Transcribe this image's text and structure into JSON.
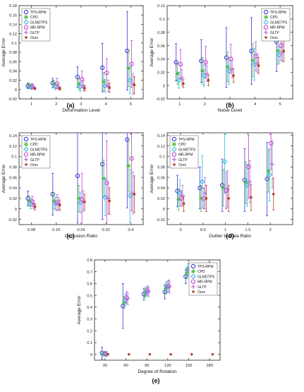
{
  "series_styles": [
    {
      "name": "TPS-RPM",
      "color": "#3a3ad6",
      "marker": "circle",
      "open": true
    },
    {
      "name": "CPD",
      "color": "#4cc23a",
      "marker": "star",
      "open": false
    },
    {
      "name": "GLMDTPS",
      "color": "#2fb8d8",
      "marker": "diamond",
      "open": true
    },
    {
      "name": "MR-RPM",
      "color": "#c23fd6",
      "marker": "circle",
      "open": true
    },
    {
      "name": "GLTP",
      "color": "#b46bd8",
      "marker": "plus",
      "open": false
    },
    {
      "name": "Ours",
      "color": "#b4442a",
      "marker": "dot",
      "open": false
    }
  ],
  "chart_data": [
    {
      "type": "scatter",
      "panel_label": "(a)",
      "xlabel": "Deformation Level",
      "ylabel": "Average Error",
      "xlim": [
        0.5,
        5.5
      ],
      "ylim": [
        -0.02,
        0.18
      ],
      "xticks": [
        1,
        2,
        3,
        4,
        5
      ],
      "xtick_labels": [
        "1",
        "2",
        "3",
        "4",
        "5"
      ],
      "yticks": [
        -0.02,
        0,
        0.02,
        0.04,
        0.06,
        0.08,
        0.1,
        0.12,
        0.14,
        0.16,
        0.18
      ],
      "ytick_labels": [
        "-0.02",
        "0",
        "0.02",
        "0.04",
        "0.06",
        "0.08",
        "0.1",
        "0.12",
        "0.14",
        "0.16",
        "0.18"
      ],
      "legend": "top-left",
      "grid": false,
      "series": [
        {
          "name": "TPS-RPM",
          "x": [
            1,
            2,
            3,
            4,
            5
          ],
          "y": [
            0.008,
            0.014,
            0.027,
            0.047,
            0.083
          ],
          "err": [
            0.006,
            0.01,
            0.022,
            0.052,
            0.084
          ]
        },
        {
          "name": "CPD",
          "x": [
            1,
            2,
            3,
            4,
            5
          ],
          "y": [
            0.009,
            0.012,
            0.012,
            0.017,
            0.046
          ],
          "err": [
            0.005,
            0.008,
            0.012,
            0.02,
            0.04
          ]
        },
        {
          "name": "GLMDTPS",
          "x": [
            1,
            2,
            3,
            4,
            5
          ],
          "y": [
            0.005,
            0.006,
            0.006,
            0.008,
            0.02
          ],
          "err": [
            0.004,
            0.006,
            0.01,
            0.014,
            0.028
          ]
        },
        {
          "name": "MR-RPM",
          "x": [
            1,
            2,
            3,
            4,
            5
          ],
          "y": [
            0.007,
            0.013,
            0.022,
            0.036,
            0.055
          ],
          "err": [
            0.006,
            0.011,
            0.018,
            0.03,
            0.05
          ]
        },
        {
          "name": "GLTP",
          "x": [
            1,
            2,
            3,
            4,
            5
          ],
          "y": [
            0.005,
            0.006,
            0.008,
            0.008,
            0.012
          ],
          "err": [
            0.003,
            0.005,
            0.01,
            0.012,
            0.022
          ]
        },
        {
          "name": "Ours",
          "x": [
            1,
            2,
            3,
            4,
            5
          ],
          "y": [
            0.002,
            0.002,
            0.003,
            0.004,
            0.01
          ],
          "err": [
            0.002,
            0.003,
            0.006,
            0.01,
            0.018
          ]
        }
      ]
    },
    {
      "type": "scatter",
      "panel_label": "(b)",
      "xlabel": "Noise Level",
      "ylabel": "Average Error",
      "xlim": [
        0.5,
        5.5
      ],
      "ylim": [
        -0.02,
        0.12
      ],
      "xticks": [
        1,
        2,
        3,
        4,
        5
      ],
      "xtick_labels": [
        "1",
        "2",
        "3",
        "4",
        "5"
      ],
      "yticks": [
        -0.02,
        0,
        0.02,
        0.04,
        0.06,
        0.08,
        0.1,
        0.12
      ],
      "ytick_labels": [
        "-0.02",
        "0",
        "0.02",
        "0.04",
        "0.06",
        "0.08",
        "0.1",
        "0.12"
      ],
      "legend": "top-right",
      "grid": false,
      "series": [
        {
          "name": "TPS-RPM",
          "x": [
            1,
            2,
            3,
            4,
            5
          ],
          "y": [
            0.035,
            0.037,
            0.042,
            0.052,
            0.066
          ],
          "err": [
            0.028,
            0.032,
            0.045,
            0.05,
            0.045
          ]
        },
        {
          "name": "CPD",
          "x": [
            1,
            2,
            3,
            4,
            5
          ],
          "y": [
            0.018,
            0.022,
            0.028,
            0.038,
            0.052
          ],
          "err": [
            0.016,
            0.02,
            0.022,
            0.025,
            0.02
          ]
        },
        {
          "name": "GLMDTPS",
          "x": [
            1,
            2,
            3,
            4,
            5
          ],
          "y": [
            0.008,
            0.015,
            0.022,
            0.032,
            0.046
          ],
          "err": [
            0.012,
            0.016,
            0.02,
            0.024,
            0.012
          ]
        },
        {
          "name": "MR-RPM",
          "x": [
            1,
            2,
            3,
            4,
            5
          ],
          "y": [
            0.032,
            0.035,
            0.04,
            0.044,
            0.06
          ],
          "err": [
            0.022,
            0.024,
            0.022,
            0.022,
            0.022
          ]
        },
        {
          "name": "GLTP",
          "x": [
            1,
            2,
            3,
            4,
            5
          ],
          "y": [
            0.012,
            0.018,
            0.025,
            0.034,
            0.05
          ],
          "err": [
            0.012,
            0.012,
            0.013,
            0.014,
            0.014
          ]
        },
        {
          "name": "Ours",
          "x": [
            1,
            2,
            3,
            4,
            5
          ],
          "y": [
            0.003,
            0.008,
            0.015,
            0.03,
            0.052
          ],
          "err": [
            0.006,
            0.008,
            0.01,
            0.012,
            0.016
          ]
        }
      ]
    },
    {
      "type": "scatter",
      "panel_label": "(c)",
      "xlabel": "Occlusion Ratio",
      "ylabel": "Average Error",
      "xlim": [
        0.04,
        0.44
      ],
      "ylim": [
        -0.03,
        0.145
      ],
      "xticks": [
        0.08,
        0.16,
        0.24,
        0.32,
        0.4
      ],
      "xtick_labels": [
        "0.08",
        "0.16",
        "0.24",
        "0.32",
        "0.4"
      ],
      "yticks": [
        -0.02,
        0,
        0.02,
        0.04,
        0.06,
        0.08,
        0.1,
        0.12,
        0.14
      ],
      "ytick_labels": [
        "-0.02",
        "0",
        "0.02",
        "0.04",
        "0.06",
        "0.08",
        "0.1",
        "0.12",
        "0.14"
      ],
      "legend": "top-left",
      "grid": false,
      "series": [
        {
          "name": "TPS-RPM",
          "x": [
            0.08,
            0.16,
            0.24,
            0.32,
            0.4
          ],
          "y": [
            0.02,
            0.028,
            0.063,
            0.085,
            0.132
          ],
          "err": [
            0.014,
            0.04,
            0.09,
            0.105,
            0.13
          ]
        },
        {
          "name": "CPD",
          "x": [
            0.08,
            0.16,
            0.24,
            0.32,
            0.4
          ],
          "y": [
            0.015,
            0.015,
            0.02,
            0.058,
            0.082
          ],
          "err": [
            0.01,
            0.015,
            0.025,
            0.035,
            0.05
          ]
        },
        {
          "name": "GLMDTPS",
          "x": [
            0.08,
            0.16,
            0.24,
            0.32,
            0.4
          ],
          "y": [
            0.01,
            0.01,
            0.012,
            0.022,
            0.025
          ],
          "err": [
            0.01,
            0.012,
            0.02,
            0.035,
            0.05
          ]
        },
        {
          "name": "MR-RPM",
          "x": [
            0.08,
            0.16,
            0.24,
            0.32,
            0.4
          ],
          "y": [
            0.014,
            0.012,
            0.018,
            0.05,
            0.096
          ],
          "err": [
            0.01,
            0.015,
            0.05,
            0.08,
            0.1
          ]
        },
        {
          "name": "GLTP",
          "x": [
            0.08,
            0.16,
            0.24,
            0.32,
            0.4
          ],
          "y": [
            0.008,
            0.01,
            0.015,
            0.02,
            0.03
          ],
          "err": [
            0.008,
            0.012,
            0.02,
            0.03,
            0.04
          ]
        },
        {
          "name": "Ours",
          "x": [
            0.08,
            0.16,
            0.24,
            0.32,
            0.4
          ],
          "y": [
            0.004,
            0.007,
            0.013,
            0.015,
            0.028
          ],
          "err": [
            0.006,
            0.01,
            0.015,
            0.025,
            0.035
          ]
        }
      ]
    },
    {
      "type": "scatter",
      "panel_label": "(d)",
      "xlabel": "Outlier to Data Ratio",
      "ylabel": "Average Error",
      "xlim": [
        -0.3,
        2.5
      ],
      "ylim": [
        -0.03,
        0.145
      ],
      "xticks": [
        0,
        0.5,
        1,
        1.5,
        2
      ],
      "xtick_labels": [
        "0",
        "0.5",
        "1",
        "1.5",
        "2"
      ],
      "yticks": [
        -0.02,
        0,
        0.02,
        0.04,
        0.06,
        0.08,
        0.1,
        0.12,
        0.14
      ],
      "ytick_labels": [
        "-0.02",
        "0",
        "0.02",
        "0.04",
        "0.06",
        "0.08",
        "0.1",
        "0.12",
        "0.14"
      ],
      "legend": "top-left",
      "grid": false,
      "series": [
        {
          "name": "TPS-RPM",
          "x": [
            0,
            0.5,
            1,
            1.5,
            2
          ],
          "y": [
            0.034,
            0.04,
            0.045,
            0.055,
            0.057
          ],
          "err": [
            0.03,
            0.04,
            0.05,
            0.06,
            0.07
          ]
        },
        {
          "name": "CPD",
          "x": [
            0,
            0.5,
            1,
            1.5,
            2
          ],
          "y": [
            0.018,
            0.02,
            0.04,
            0.05,
            0.072
          ],
          "err": [
            0.02,
            0.025,
            0.035,
            0.04,
            0.04
          ]
        },
        {
          "name": "GLMDTPS",
          "x": [
            0,
            0.5,
            1,
            1.5,
            2
          ],
          "y": [
            0.03,
            0.052,
            0.09,
            0.045,
            0.065
          ],
          "err": [
            0.025,
            0.05,
            0.06,
            0.04,
            0.05
          ]
        },
        {
          "name": "MR-RPM",
          "x": [
            0,
            0.5,
            1,
            1.5,
            2
          ],
          "y": [
            0.02,
            0.02,
            0.035,
            0.08,
            0.125
          ],
          "err": [
            0.015,
            0.02,
            0.035,
            0.06,
            0.05
          ]
        },
        {
          "name": "GLTP",
          "x": [
            0,
            0.5,
            1,
            1.5,
            2
          ],
          "y": [
            0.025,
            0.03,
            0.038,
            0.052,
            0.085
          ],
          "err": [
            0.02,
            0.03,
            0.035,
            0.04,
            0.045
          ]
        },
        {
          "name": "Ours",
          "x": [
            0,
            0.5,
            1,
            1.5,
            2
          ],
          "y": [
            0.01,
            0.02,
            0.02,
            0.022,
            0.028
          ],
          "err": [
            0.015,
            0.025,
            0.025,
            0.025,
            0.03
          ]
        }
      ]
    },
    {
      "type": "scatter",
      "panel_label": "(e)",
      "xlabel": "Degree of Rotation",
      "ylabel": "Average Error",
      "xlim": [
        15,
        195
      ],
      "ylim": [
        -0.05,
        0.8
      ],
      "xticks": [
        30,
        60,
        90,
        120,
        150,
        180
      ],
      "xtick_labels": [
        "30",
        "60",
        "90",
        "120",
        "150",
        "180"
      ],
      "yticks": [
        0,
        0.1,
        0.2,
        0.3,
        0.4,
        0.5,
        0.6,
        0.7,
        0.8
      ],
      "ytick_labels": [
        "0",
        "0.1",
        "0.2",
        "0.3",
        "0.4",
        "0.5",
        "0.6",
        "0.7",
        "0.8"
      ],
      "legend": "top-right",
      "grid": false,
      "series": [
        {
          "name": "TPS-RPM",
          "x": [
            30,
            60,
            90,
            120,
            150,
            180
          ],
          "y": [
            0.01,
            0.41,
            0.51,
            0.53,
            0.66,
            0.69
          ],
          "err": [
            0.05,
            0.19,
            0.05,
            0.06,
            0.06,
            0.06
          ]
        },
        {
          "name": "CPD",
          "x": [
            30,
            60,
            90,
            120,
            150,
            180
          ],
          "y": [
            0.005,
            0.44,
            0.52,
            0.56,
            0.69,
            0.72
          ],
          "err": [
            0.02,
            0.05,
            0.04,
            0.05,
            0.05,
            0.04
          ]
        },
        {
          "name": "GLMDTPS",
          "x": [
            30,
            60,
            90,
            120,
            150,
            180
          ],
          "y": [
            0.005,
            0.46,
            0.53,
            0.57,
            0.72,
            0.74
          ],
          "err": [
            0.02,
            0.05,
            0.04,
            0.05,
            0.05,
            0.04
          ]
        },
        {
          "name": "MR-RPM",
          "x": [
            30,
            60,
            90,
            120,
            150,
            180
          ],
          "y": [
            0.004,
            0.48,
            0.54,
            0.58,
            0.72,
            0.73
          ],
          "err": [
            0.02,
            0.05,
            0.04,
            0.05,
            0.05,
            0.04
          ]
        },
        {
          "name": "GLTP",
          "x": [
            30,
            60,
            90,
            120,
            150,
            180
          ],
          "y": [
            0.003,
            0.47,
            0.53,
            0.57,
            0.71,
            0.72
          ],
          "err": [
            0.02,
            0.05,
            0.04,
            0.05,
            0.05,
            0.04
          ]
        },
        {
          "name": "Ours",
          "x": [
            30,
            60,
            90,
            120,
            150,
            180
          ],
          "y": [
            0.0,
            0.0,
            0.0,
            0.0,
            0.0,
            0.0
          ],
          "err": [
            0.002,
            0.002,
            0.002,
            0.002,
            0.002,
            0.002
          ]
        }
      ]
    }
  ]
}
